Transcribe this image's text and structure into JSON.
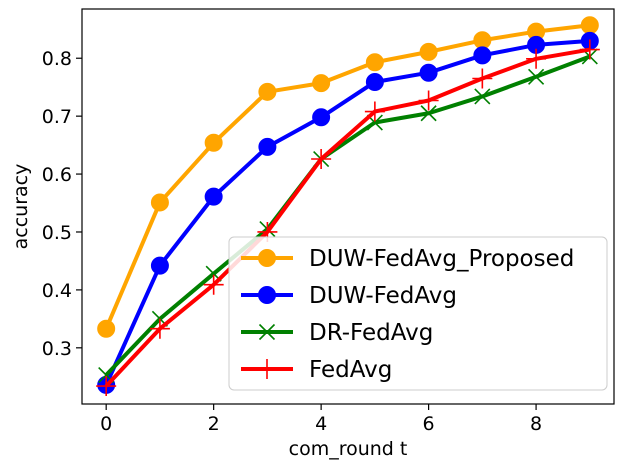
{
  "chart_data": {
    "type": "line",
    "title": "",
    "xlabel": "com_round t",
    "ylabel": "accuracy",
    "x": [
      0,
      1,
      2,
      3,
      4,
      5,
      6,
      7,
      8,
      9
    ],
    "xlim": [
      -0.45,
      9.45
    ],
    "ylim": [
      0.203,
      0.885
    ],
    "xticks": [
      0,
      2,
      4,
      6,
      8
    ],
    "yticks": [
      0.3,
      0.4,
      0.5,
      0.6,
      0.7,
      0.8
    ],
    "xtick_labels": [
      "0",
      "2",
      "4",
      "6",
      "8"
    ],
    "ytick_labels": [
      "0.3",
      "0.4",
      "0.5",
      "0.6",
      "0.7",
      "0.8"
    ],
    "grid": false,
    "legend_position": "lower-right",
    "series": [
      {
        "name": "DUW-FedAvg_Proposed",
        "color": "#FFA500",
        "marker": "circle",
        "values": [
          0.333,
          0.551,
          0.654,
          0.742,
          0.757,
          0.793,
          0.811,
          0.831,
          0.846,
          0.857
        ]
      },
      {
        "name": "DUW-FedAvg",
        "color": "#0000FF",
        "marker": "circle",
        "values": [
          0.236,
          0.442,
          0.561,
          0.647,
          0.698,
          0.759,
          0.775,
          0.805,
          0.823,
          0.83
        ]
      },
      {
        "name": "DR-FedAvg",
        "color": "#008000",
        "marker": "x",
        "values": [
          0.253,
          0.35,
          0.428,
          0.505,
          0.626,
          0.689,
          0.705,
          0.734,
          0.768,
          0.803
        ]
      },
      {
        "name": "FedAvg",
        "color": "#FF0000",
        "marker": "plus",
        "values": [
          0.234,
          0.333,
          0.409,
          0.5,
          0.626,
          0.708,
          0.727,
          0.765,
          0.799,
          0.815
        ]
      }
    ]
  }
}
